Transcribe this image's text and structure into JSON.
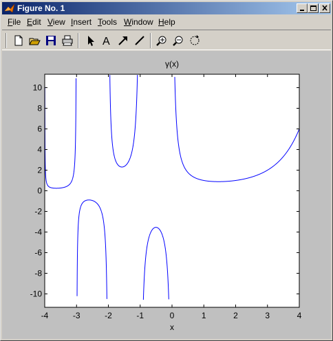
{
  "window": {
    "title": "Figure No. 1",
    "controls": [
      "minimize",
      "maximize",
      "close"
    ]
  },
  "menu": {
    "items": [
      {
        "label": "File",
        "accel": "F",
        "rest": "ile"
      },
      {
        "label": "Edit",
        "accel": "E",
        "rest": "dit"
      },
      {
        "label": "View",
        "accel": "V",
        "rest": "iew"
      },
      {
        "label": "Insert",
        "accel": "I",
        "rest": "nsert"
      },
      {
        "label": "Tools",
        "accel": "T",
        "rest": "ools"
      },
      {
        "label": "Window",
        "accel": "W",
        "rest": "indow"
      },
      {
        "label": "Help",
        "accel": "H",
        "rest": "elp"
      }
    ]
  },
  "toolbar": {
    "icons": [
      "new-file-icon",
      "open-folder-icon",
      "save-icon",
      "print-icon",
      "select-arrow-icon",
      "insert-text-icon",
      "insert-arrow-icon",
      "insert-line-icon",
      "zoom-in-icon",
      "zoom-out-icon",
      "rotate-icon"
    ]
  },
  "chart_data": {
    "type": "line",
    "title": "γ(x)",
    "xlabel": "x",
    "ylabel": "",
    "xlim": [
      -4,
      4
    ],
    "ylim": [
      -11.3,
      11.3
    ],
    "xticks": [
      -4,
      -3,
      -2,
      -1,
      0,
      1,
      2,
      3,
      4
    ],
    "yticks": [
      -10,
      -8,
      -6,
      -4,
      -2,
      0,
      2,
      4,
      6,
      8,
      10
    ],
    "grid": false,
    "series": [
      {
        "name": "",
        "color": "#0000ff",
        "function": "gamma",
        "clip_y": [
          -10.6,
          11.3
        ],
        "segments": [
          [
            -4,
            -3
          ],
          [
            -3,
            -2
          ],
          [
            -2,
            -1
          ],
          [
            -1,
            0
          ],
          [
            0,
            4
          ]
        ]
      }
    ]
  }
}
